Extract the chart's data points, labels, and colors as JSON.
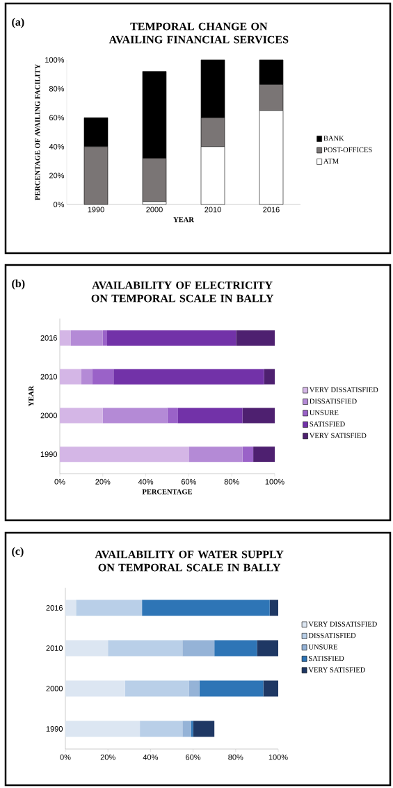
{
  "chart_data": [
    {
      "type": "bar",
      "title": "TEMPORAL CHANGE ON AVAILING FINANCIAL SERVICES",
      "annotations": [
        "(a)"
      ],
      "xlabel": "YEAR",
      "ylabel": "PERCENTAGE OF AVAILING FACILITY",
      "categories": [
        "1990",
        "2000",
        "2010",
        "2016"
      ],
      "stacked": true,
      "legend": "right",
      "ylim": [
        0,
        100
      ],
      "yticks": [
        {
          "value": 0,
          "label": "0%"
        },
        {
          "value": 20,
          "label": "20%"
        },
        {
          "value": 40,
          "label": "40%"
        },
        {
          "value": 60,
          "label": "60%"
        },
        {
          "value": 80,
          "label": "80%"
        },
        {
          "value": 100,
          "label": "100%"
        }
      ],
      "series": [
        {
          "name": "ATM",
          "color": "#ffffff",
          "values": [
            0,
            2,
            40,
            65
          ]
        },
        {
          "name": "POST-OFFICES",
          "color": "#7a7575",
          "values": [
            40,
            30,
            20,
            18
          ]
        },
        {
          "name": "BANK",
          "color": "#000000",
          "values": [
            20,
            60,
            40,
            17
          ]
        }
      ]
    },
    {
      "type": "bar",
      "title": "AVAILABILITY OF ELECTRICITY ON TEMPORAL SCALE IN BALLY",
      "annotations": [
        "(b)"
      ],
      "xlabel": "PERCENTAGE",
      "ylabel": "YEAR",
      "categories": [
        "2016",
        "2010",
        "2000",
        "1990"
      ],
      "stacked": true,
      "orientation": "horizontal",
      "legend": "right",
      "xlim": [
        0,
        100
      ],
      "xticks": [
        {
          "value": 0,
          "label": "0%"
        },
        {
          "value": 20,
          "label": "20%"
        },
        {
          "value": 40,
          "label": "40%"
        },
        {
          "value": 60,
          "label": "60%"
        },
        {
          "value": 80,
          "label": "80%"
        },
        {
          "value": 100,
          "label": "100%"
        }
      ],
      "series": [
        {
          "name": "VERY DISSATISFIED",
          "color": "#d4b6e6",
          "values": [
            5,
            10,
            20,
            60
          ]
        },
        {
          "name": "DISSATISFIED",
          "color": "#b48ad6",
          "values": [
            15,
            5,
            30,
            25
          ]
        },
        {
          "name": "UNSURE",
          "color": "#9a62c8",
          "values": [
            2,
            10,
            5,
            5
          ]
        },
        {
          "name": "SATISFIED",
          "color": "#7232a8",
          "values": [
            60,
            70,
            30,
            0
          ]
        },
        {
          "name": "VERY SATISFIED",
          "color": "#4e2070",
          "values": [
            18,
            5,
            15,
            10
          ]
        }
      ]
    },
    {
      "type": "bar",
      "title": "AVAILABILITY OF WATER SUPPLY ON TEMPORAL SCALE IN BALLY",
      "annotations": [
        "(c)"
      ],
      "categories": [
        "2016",
        "2010",
        "2000",
        "1990"
      ],
      "stacked": true,
      "orientation": "horizontal",
      "legend": "right",
      "xlim": [
        0,
        100
      ],
      "xticks": [
        {
          "value": 0,
          "label": "0%"
        },
        {
          "value": 20,
          "label": "20%"
        },
        {
          "value": 40,
          "label": "40%"
        },
        {
          "value": 60,
          "label": "60%"
        },
        {
          "value": 80,
          "label": "80%"
        },
        {
          "value": 100,
          "label": "100%"
        }
      ],
      "series": [
        {
          "name": "VERY DISSATISFIED",
          "color": "#dce6f2",
          "values": [
            5,
            20,
            28,
            35
          ]
        },
        {
          "name": "DISSATISFIED",
          "color": "#b9cfe8",
          "values": [
            31,
            35,
            30,
            20
          ]
        },
        {
          "name": "UNSURE",
          "color": "#95b3d7",
          "values": [
            0,
            15,
            5,
            4
          ]
        },
        {
          "name": "SATISFIED",
          "color": "#2e75b6",
          "values": [
            60,
            20,
            30,
            1
          ]
        },
        {
          "name": "VERY SATISFIED",
          "color": "#1f3864",
          "values": [
            4,
            10,
            7,
            10
          ]
        }
      ]
    }
  ]
}
